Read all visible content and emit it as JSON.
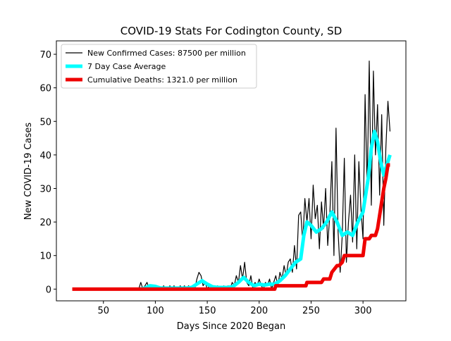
{
  "chart_data": {
    "type": "line",
    "title": "COVID-19 Stats For Codington County, SD",
    "xlabel": "Days Since 2020 Began",
    "ylabel": "New COVID-19 Cases",
    "xlim": [
      4.7,
      341.3
    ],
    "ylim": [
      -3.5,
      74
    ],
    "xticks": [
      50,
      100,
      150,
      200,
      250,
      300
    ],
    "yticks": [
      0,
      10,
      20,
      30,
      40,
      50,
      60,
      70
    ],
    "legend": "upper left",
    "series": [
      {
        "name": "New Confirmed Cases: 87500 per million",
        "color": "#000000",
        "x": [
          84,
          86,
          88,
          90,
          92,
          94,
          96,
          98,
          100,
          102,
          104,
          106,
          108,
          110,
          112,
          114,
          116,
          118,
          120,
          122,
          124,
          126,
          128,
          130,
          132,
          134,
          136,
          138,
          140,
          142,
          144,
          146,
          148,
          150,
          152,
          154,
          156,
          158,
          160,
          162,
          164,
          166,
          168,
          170,
          172,
          174,
          176,
          178,
          180,
          182,
          184,
          186,
          188,
          190,
          192,
          194,
          196,
          198,
          200,
          202,
          204,
          206,
          208,
          210,
          212,
          214,
          216,
          218,
          220,
          222,
          224,
          226,
          228,
          230,
          232,
          234,
          236,
          238,
          240,
          242,
          244,
          246,
          248,
          250,
          252,
          254,
          256,
          258,
          260,
          262,
          264,
          266,
          268,
          270,
          272,
          274,
          276,
          278,
          280,
          282,
          284,
          286,
          288,
          290,
          292,
          294,
          296,
          298,
          300,
          302,
          304,
          306,
          308,
          310,
          312,
          314,
          316,
          318,
          320,
          322,
          324,
          326
        ],
        "values": [
          0,
          2,
          0,
          1,
          2,
          0,
          1,
          1,
          0,
          1,
          0,
          0,
          1,
          0,
          0,
          1,
          0,
          1,
          0,
          0,
          1,
          0,
          1,
          0,
          1,
          0,
          1,
          0,
          3,
          5,
          4,
          1,
          2,
          0,
          1,
          0,
          1,
          0,
          1,
          0,
          0,
          1,
          0,
          1,
          0,
          2,
          1,
          4,
          2,
          7,
          3,
          8,
          2,
          1,
          4,
          0,
          2,
          1,
          3,
          1,
          0,
          2,
          1,
          3,
          0,
          2,
          4,
          1,
          5,
          3,
          7,
          4,
          8,
          9,
          5,
          13,
          6,
          22,
          23,
          14,
          27,
          20,
          27,
          15,
          31,
          21,
          25,
          12,
          26,
          18,
          30,
          13,
          22,
          38,
          10,
          48,
          17,
          5,
          16,
          39,
          8,
          20,
          28,
          14,
          40,
          12,
          38,
          24,
          15,
          58,
          30,
          68,
          25,
          65,
          40,
          55,
          28,
          52,
          19,
          42,
          56,
          47
        ]
      },
      {
        "name": "7 Day Case Average",
        "color": "#00ffff",
        "x": [
          85,
          90,
          95,
          100,
          105,
          110,
          115,
          120,
          125,
          130,
          135,
          140,
          145,
          150,
          155,
          160,
          165,
          170,
          175,
          180,
          185,
          190,
          195,
          200,
          205,
          210,
          215,
          220,
          225,
          230,
          235,
          240,
          243,
          246,
          250,
          255,
          260,
          265,
          270,
          275,
          280,
          285,
          290,
          295,
          300,
          305,
          308,
          311,
          314,
          317,
          320,
          323,
          326
        ],
        "values": [
          0,
          0.3,
          1,
          0.8,
          0.3,
          0.3,
          0.3,
          0.3,
          0.3,
          0.3,
          0.5,
          1.5,
          2.5,
          1.5,
          0.7,
          0.5,
          0.5,
          0.5,
          0.8,
          2,
          3.5,
          2,
          1,
          1.5,
          1.2,
          1.5,
          1.5,
          2.5,
          4,
          6,
          8,
          9,
          16,
          20,
          19,
          17,
          18,
          20,
          23,
          20,
          16,
          17,
          16,
          20,
          23,
          33,
          42,
          47,
          44,
          38,
          34,
          37,
          40
        ]
      },
      {
        "name": "Cumulative Deaths: 1321.0 per million",
        "color": "#ee0000",
        "x": [
          20,
          215,
          216,
          245,
          246,
          260,
          262,
          268,
          270,
          275,
          277,
          280,
          282,
          300,
          302,
          306,
          308,
          312,
          314,
          316,
          318,
          320,
          322,
          324,
          326
        ],
        "values": [
          0,
          0,
          1,
          1,
          2,
          2,
          3,
          3,
          5,
          7,
          7,
          8,
          10,
          10,
          15,
          15,
          16,
          16,
          18,
          22,
          26,
          30,
          33,
          37,
          37
        ]
      }
    ]
  }
}
